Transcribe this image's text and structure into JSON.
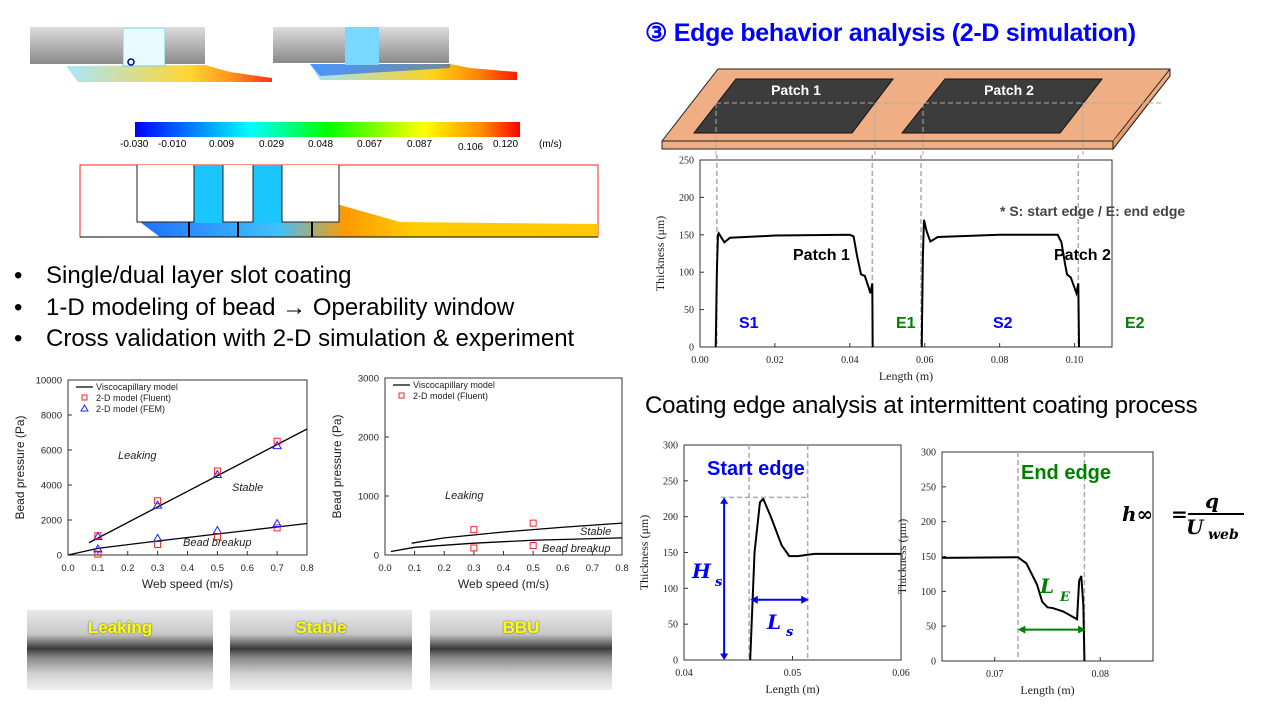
{
  "left": {
    "colorbar": {
      "ticks": [
        "-0.030",
        "-0.010",
        "0.009",
        "0.029",
        "0.048",
        "0.067",
        "0.087",
        "0.106",
        "0.120"
      ],
      "unit": "(m/s)"
    },
    "bullets": [
      "Single/dual layer slot coating",
      "1-D modeling of bead → Operability window",
      "Cross validation with 2-D simulation & experiment"
    ],
    "photos": [
      "Leaking",
      "Stable",
      "BBU"
    ]
  },
  "right": {
    "title": "③ Edge behavior analysis (2-D simulation)",
    "patches": [
      "Patch 1",
      "Patch 2"
    ],
    "subtitle": "Coating edge analysis at intermittent coating process",
    "colors": {
      "title": "#0000ff",
      "substrate": "#f0ae84",
      "patch": "#3c3c3c",
      "start": "#0000ff",
      "end": "#008000"
    }
  },
  "chart_data": [
    {
      "type": "line+scatter",
      "xlabel": "Web speed (m/s)",
      "ylabel": "Bead pressure (Pa)",
      "xlim": [
        0,
        0.8
      ],
      "ylim": [
        0,
        10000
      ],
      "xticks": [
        "0.0",
        "0.1",
        "0.2",
        "0.3",
        "0.4",
        "0.5",
        "0.6",
        "0.7",
        "0.8"
      ],
      "yticks": [
        "0",
        "2000",
        "4000",
        "6000",
        "8000",
        "10000"
      ],
      "legend": [
        "Viscocapillary model",
        "2-D model (Fluent)",
        "2-D model (FEM)"
      ],
      "lines": [
        {
          "x": [
            0.07,
            0.8
          ],
          "y": [
            700,
            7200
          ]
        },
        {
          "x": [
            0,
            0.1,
            0.3,
            0.5,
            0.7,
            0.8
          ],
          "y": [
            0,
            380,
            800,
            1200,
            1600,
            1800
          ]
        }
      ],
      "points": [
        {
          "series": "2-D model (Fluent)",
          "marker": "square",
          "x": [
            0.1,
            0.3,
            0.5,
            0.7,
            0.1,
            0.3,
            0.5,
            0.7
          ],
          "y": [
            1100,
            3100,
            4800,
            6500,
            50,
            600,
            1050,
            1550
          ]
        },
        {
          "series": "2-D model (FEM)",
          "marker": "triangle",
          "x": [
            0.1,
            0.3,
            0.5,
            0.7,
            0.1,
            0.3,
            0.5,
            0.7
          ],
          "y": [
            1050,
            2850,
            4600,
            6250,
            350,
            950,
            1400,
            1800
          ]
        }
      ],
      "annotations": [
        "Leaking",
        "Stable",
        "Bead breakup"
      ]
    },
    {
      "type": "line+scatter",
      "xlabel": "Web speed (m/s)",
      "ylabel": "Bead pressure (Pa)",
      "xlim": [
        0,
        0.8
      ],
      "ylim": [
        0,
        3000
      ],
      "xticks": [
        "0.0",
        "0.1",
        "0.2",
        "0.3",
        "0.4",
        "0.5",
        "0.6",
        "0.7",
        "0.8"
      ],
      "yticks": [
        "0",
        "1000",
        "2000",
        "3000"
      ],
      "legend": [
        "Viscocapillary model",
        "2-D model (Fluent)"
      ],
      "lines": [
        {
          "x": [
            0.09,
            0.2,
            0.4,
            0.6,
            0.8
          ],
          "y": [
            200,
            290,
            390,
            470,
            540
          ]
        },
        {
          "x": [
            0.02,
            0.1,
            0.3,
            0.5,
            0.8
          ],
          "y": [
            60,
            130,
            200,
            250,
            290
          ]
        }
      ],
      "points": [
        {
          "series": "2-D model (Fluent)",
          "marker": "square",
          "x": [
            0.3,
            0.5,
            0.3,
            0.5
          ],
          "y": [
            430,
            540,
            120,
            160
          ]
        }
      ],
      "annotations": [
        "Leaking",
        "Stable",
        "Bead breakup"
      ]
    },
    {
      "type": "line",
      "xlabel": "Length (m)",
      "ylabel": "Thickness (μm)",
      "xlim": [
        0,
        0.11
      ],
      "ylim": [
        0,
        250
      ],
      "xticks": [
        "0.00",
        "0.02",
        "0.04",
        "0.06",
        "0.08",
        "0.10"
      ],
      "yticks": [
        "0",
        "50",
        "100",
        "150",
        "200",
        "250"
      ],
      "lines": [
        {
          "x": [
            0.0042,
            0.0045,
            0.0048,
            0.005,
            0.0065,
            0.008,
            0.02,
            0.04,
            0.041,
            0.042,
            0.043,
            0.044,
            0.045,
            0.0455,
            0.046,
            0.0461
          ],
          "y": [
            0,
            100,
            150,
            152,
            140,
            146,
            149,
            150,
            148,
            120,
            97,
            95,
            80,
            72,
            85,
            0
          ]
        },
        {
          "x": [
            0.0592,
            0.0595,
            0.0598,
            0.0605,
            0.0615,
            0.0635,
            0.08,
            0.0955,
            0.0965,
            0.0975,
            0.098,
            0.099,
            0.1005,
            0.101,
            0.1012
          ],
          "y": [
            0,
            120,
            170,
            155,
            141,
            147,
            150,
            150,
            140,
            110,
            97,
            93,
            72,
            85,
            0
          ]
        }
      ],
      "edges": [
        0.0045,
        0.046,
        0.059,
        0.101
      ],
      "edge_labels": [
        "S1",
        "E1",
        "S2",
        "E2"
      ],
      "labels": [
        "Patch 1",
        "Patch 2"
      ],
      "note": "* S: start edge / E: end edge"
    },
    {
      "type": "line",
      "xlabel": "Length (m)",
      "ylabel": "Thickness (μm)",
      "xlim": [
        0.04,
        0.06
      ],
      "ylim": [
        0,
        300
      ],
      "xticks": [
        "0.04",
        "0.05",
        "0.06"
      ],
      "yticks": [
        "0",
        "50",
        "100",
        "150",
        "200",
        "250",
        "300"
      ],
      "lines": [
        {
          "x": [
            0.0461,
            0.0465,
            0.047,
            0.0473,
            0.048,
            0.049,
            0.0497,
            0.0505,
            0.052,
            0.06
          ],
          "y": [
            0,
            150,
            220,
            225,
            200,
            160,
            145,
            145,
            148,
            148
          ]
        }
      ],
      "edges": [
        0.046,
        0.0514
      ],
      "peak": 227,
      "title": "Start edge",
      "annotations": [
        "H",
        "s",
        "L",
        "s"
      ]
    },
    {
      "type": "line",
      "xlabel": "Length (m)",
      "ylabel": "Thickness (μm)",
      "xlim": [
        0.065,
        0.085
      ],
      "ylim": [
        0,
        300
      ],
      "xticks": [
        "0.07",
        "0.08"
      ],
      "yticks": [
        "0",
        "50",
        "100",
        "150",
        "200",
        "250",
        "300"
      ],
      "lines": [
        {
          "x": [
            0.065,
            0.0722,
            0.073,
            0.074,
            0.0745,
            0.075,
            0.0755,
            0.0765,
            0.0778,
            0.078,
            0.0782,
            0.0784,
            0.0785
          ],
          "y": [
            148,
            149,
            140,
            110,
            85,
            77,
            76,
            71,
            60,
            115,
            122,
            80,
            0
          ]
        }
      ],
      "edges": [
        0.0722,
        0.0785
      ],
      "title": "End edge",
      "annotations": [
        "L",
        "E"
      ],
      "formula": {
        "lhs": "h∞",
        "eq": "=",
        "num": "q",
        "den": "U",
        "den_sub": "web"
      }
    }
  ]
}
